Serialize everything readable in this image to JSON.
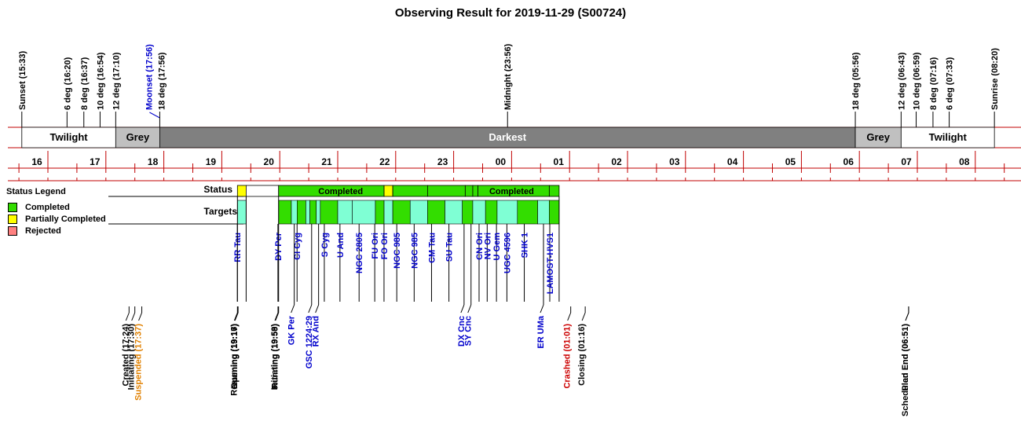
{
  "chart_data": {
    "type": "timeline",
    "title": "Observing Result for 2019-11-29 (S00724)",
    "colors": {
      "grid": "#c00000",
      "twilight": "#ffffff",
      "grey": "#c0c0c0",
      "darkest": "#808080",
      "completed": "#33dd00",
      "partial": "#ffff00",
      "rejected": "#ff8080",
      "target_alt": "#7fffd4",
      "blue": "#0000cc",
      "orange": "#e08000",
      "red": "#cc0000"
    },
    "hour_ticks": [
      "16",
      "17",
      "18",
      "19",
      "20",
      "21",
      "22",
      "23",
      "00",
      "01",
      "02",
      "03",
      "04",
      "05",
      "06",
      "07",
      "08"
    ],
    "top_events": [
      {
        "label": "Sunset (15:33)",
        "t": 15.55,
        "color": "black"
      },
      {
        "label": "6 deg (16:20)",
        "t": 16.33,
        "color": "black"
      },
      {
        "label": "8 deg (16:37)",
        "t": 16.62,
        "color": "black"
      },
      {
        "label": "10 deg (16:54)",
        "t": 16.9,
        "color": "black"
      },
      {
        "label": "12 deg (17:10)",
        "t": 17.17,
        "color": "black"
      },
      {
        "label": "Moonset (17:56)",
        "t": 17.93,
        "color": "blue"
      },
      {
        "label": "18 deg (17:56)",
        "t": 17.93,
        "color": "black"
      },
      {
        "label": "Midnight (23:56)",
        "t": 23.93,
        "color": "black"
      },
      {
        "label": "18 deg (05:56)",
        "t": 29.93,
        "color": "black"
      },
      {
        "label": "12 deg (06:43)",
        "t": 30.72,
        "color": "black"
      },
      {
        "label": "10 deg (06:59)",
        "t": 30.98,
        "color": "black"
      },
      {
        "label": "8 deg (07:16)",
        "t": 31.27,
        "color": "black"
      },
      {
        "label": "6 deg (07:33)",
        "t": 31.55,
        "color": "black"
      },
      {
        "label": "Sunrise (08:20)",
        "t": 32.33,
        "color": "black"
      }
    ],
    "sky_bands": [
      {
        "label": "Twilight",
        "from": 15.55,
        "to": 17.17,
        "kind": "twilight"
      },
      {
        "label": "Grey",
        "from": 17.17,
        "to": 17.93,
        "kind": "grey"
      },
      {
        "label": "Darkest",
        "from": 17.93,
        "to": 29.93,
        "kind": "darkest"
      },
      {
        "label": "Grey",
        "from": 29.93,
        "to": 30.72,
        "kind": "grey"
      },
      {
        "label": "Twilight",
        "from": 30.72,
        "to": 32.33,
        "kind": "twilight"
      }
    ],
    "row_labels": {
      "status": "Status",
      "targets": "Targets"
    },
    "status_segments": [
      {
        "from": 19.27,
        "to": 19.42,
        "kind": "partial",
        "label": ""
      },
      {
        "from": 19.42,
        "to": 19.98,
        "kind": "white",
        "label": ""
      },
      {
        "from": 19.98,
        "to": 21.8,
        "kind": "completed",
        "label": "Completed"
      },
      {
        "from": 21.8,
        "to": 21.95,
        "kind": "partial",
        "label": ""
      },
      {
        "from": 21.95,
        "to": 22.55,
        "kind": "completed",
        "label": ""
      },
      {
        "from": 22.55,
        "to": 23.2,
        "kind": "completed",
        "label": ""
      },
      {
        "from": 23.2,
        "to": 23.33,
        "kind": "completed",
        "label": ""
      },
      {
        "from": 23.33,
        "to": 23.42,
        "kind": "completed",
        "label": ""
      },
      {
        "from": 23.42,
        "to": 24.65,
        "kind": "completed",
        "label": "Completed"
      },
      {
        "from": 24.65,
        "to": 24.82,
        "kind": "completed",
        "label": ""
      }
    ],
    "target_segments": [
      {
        "from": 19.27,
        "to": 19.42,
        "kind": "target_alt"
      },
      {
        "from": 19.98,
        "to": 20.2,
        "kind": "completed"
      },
      {
        "from": 20.2,
        "to": 20.3,
        "kind": "target_alt"
      },
      {
        "from": 20.3,
        "to": 20.45,
        "kind": "completed"
      },
      {
        "from": 20.45,
        "to": 20.52,
        "kind": "target_alt"
      },
      {
        "from": 20.52,
        "to": 20.63,
        "kind": "completed"
      },
      {
        "from": 20.63,
        "to": 20.7,
        "kind": "target_alt"
      },
      {
        "from": 20.7,
        "to": 21.0,
        "kind": "completed"
      },
      {
        "from": 21.0,
        "to": 21.25,
        "kind": "target_alt"
      },
      {
        "from": 21.25,
        "to": 21.65,
        "kind": "target_alt"
      },
      {
        "from": 21.65,
        "to": 21.8,
        "kind": "completed"
      },
      {
        "from": 21.8,
        "to": 21.95,
        "kind": "target_alt"
      },
      {
        "from": 21.95,
        "to": 22.25,
        "kind": "completed"
      },
      {
        "from": 22.25,
        "to": 22.55,
        "kind": "target_alt"
      },
      {
        "from": 22.55,
        "to": 22.85,
        "kind": "completed"
      },
      {
        "from": 22.85,
        "to": 23.15,
        "kind": "target_alt"
      },
      {
        "from": 23.15,
        "to": 23.33,
        "kind": "completed"
      },
      {
        "from": 23.33,
        "to": 23.55,
        "kind": "target_alt"
      },
      {
        "from": 23.55,
        "to": 23.75,
        "kind": "completed"
      },
      {
        "from": 23.75,
        "to": 24.1,
        "kind": "target_alt"
      },
      {
        "from": 24.1,
        "to": 24.45,
        "kind": "completed"
      },
      {
        "from": 24.45,
        "to": 24.65,
        "kind": "target_alt"
      },
      {
        "from": 24.65,
        "to": 24.82,
        "kind": "completed"
      }
    ],
    "targets": [
      {
        "label": "RR Tau",
        "t": 19.35,
        "row": "upper"
      },
      {
        "label": "DY Per",
        "t": 20.05,
        "row": "upper"
      },
      {
        "label": "CI Cyg",
        "t": 20.38,
        "row": "upper"
      },
      {
        "label": "S Cyg",
        "t": 20.85,
        "row": "upper"
      },
      {
        "label": "U And",
        "t": 21.12,
        "row": "upper"
      },
      {
        "label": "NGC 2805",
        "t": 21.45,
        "row": "upper"
      },
      {
        "label": "FU Ori",
        "t": 21.72,
        "row": "upper"
      },
      {
        "label": "FO Ori",
        "t": 21.88,
        "row": "upper"
      },
      {
        "label": "NGC 985",
        "t": 22.1,
        "row": "upper"
      },
      {
        "label": "NGC 985",
        "t": 22.4,
        "row": "upper"
      },
      {
        "label": "CM Tau",
        "t": 22.7,
        "row": "upper"
      },
      {
        "label": "SU Tau",
        "t": 23.0,
        "row": "upper"
      },
      {
        "label": "CN Ori",
        "t": 23.52,
        "row": "upper"
      },
      {
        "label": "NV Ori",
        "t": 23.66,
        "row": "upper"
      },
      {
        "label": "U Gem",
        "t": 23.82,
        "row": "upper"
      },
      {
        "label": "UGC 4596",
        "t": 24.0,
        "row": "upper"
      },
      {
        "label": "SHK 1",
        "t": 24.3,
        "row": "upper"
      },
      {
        "label": "LAMOST-HVS1",
        "t": 24.74,
        "row": "upper"
      },
      {
        "label": "GK Per",
        "t": 20.25,
        "row": "lower"
      },
      {
        "label": "GSC 1224:29",
        "t": 20.55,
        "row": "lower"
      },
      {
        "label": "RX And",
        "t": 20.67,
        "row": "lower"
      },
      {
        "label": "DX Cnc",
        "t": 23.18,
        "row": "lower"
      },
      {
        "label": "SY Cnc",
        "t": 23.3,
        "row": "lower"
      },
      {
        "label": "ER UMa",
        "t": 24.55,
        "row": "lower"
      }
    ],
    "bottom_events": [
      {
        "label": "Created (17:24)",
        "t": 17.4,
        "color": "black"
      },
      {
        "label": "Initiating (17:30)",
        "t": 17.5,
        "color": "black"
      },
      {
        "label": "Suspended (17:37)",
        "t": 17.62,
        "color": "orange"
      },
      {
        "label": "Resuming (19:16)",
        "t": 19.27,
        "color": "black"
      },
      {
        "label": "Opening (19:17)",
        "t": 19.28,
        "color": "black"
      },
      {
        "label": "Running (19:17)",
        "t": 19.28,
        "color": "black"
      },
      {
        "label": "Initiating (19:58)",
        "t": 19.97,
        "color": "black"
      },
      {
        "label": "Running (19:59)",
        "t": 19.98,
        "color": "black"
      },
      {
        "label": "Crashed (01:01)",
        "t": 25.02,
        "color": "red"
      },
      {
        "label": "Closing (01:16)",
        "t": 25.27,
        "color": "black"
      },
      {
        "label": "Plan End (06:51)",
        "t": 30.85,
        "color": "black"
      },
      {
        "label": "Scheduled End (06:51)",
        "t": 30.85,
        "color": "black"
      }
    ],
    "legend": {
      "title": "Status Legend",
      "items": [
        {
          "label": "Completed",
          "kind": "completed"
        },
        {
          "label": "Partially Completed",
          "kind": "partial"
        },
        {
          "label": "Rejected",
          "kind": "rejected"
        }
      ]
    }
  }
}
